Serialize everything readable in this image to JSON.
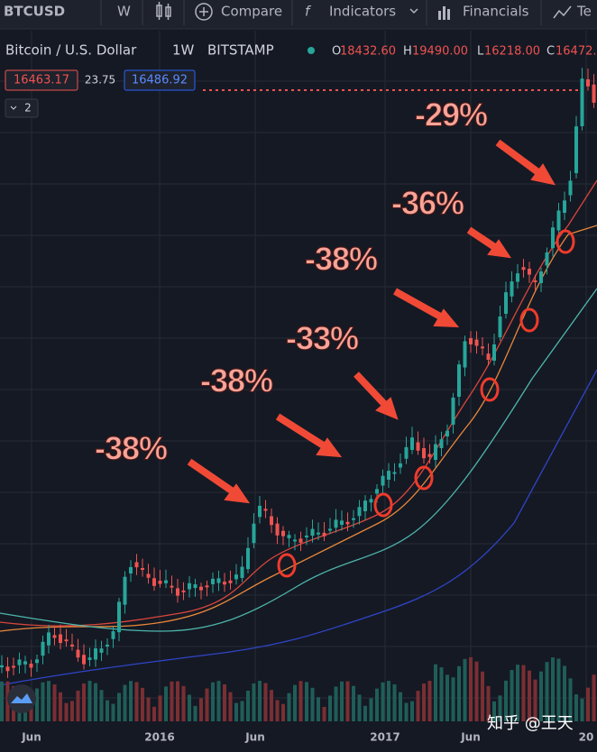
{
  "toolbar": {
    "symbol": "BTCUSD",
    "interval": "W",
    "compare": "Compare",
    "indicators": "Indicators",
    "financials": "Financials",
    "more": "Te"
  },
  "legend": {
    "title": "Bitcoin / U.S. Dollar",
    "interval": "1W",
    "exchange": "BITSTAMP",
    "open": {
      "label": "O",
      "value": "18432.60"
    },
    "high": {
      "label": "H",
      "value": "19490.00"
    },
    "low": {
      "label": "L",
      "value": "16218.00"
    },
    "close": {
      "label": "C",
      "value": "16472."
    }
  },
  "prices": {
    "sell": "16463.17",
    "spread": "23.75",
    "buy": "16486.92",
    "collapse": "2"
  },
  "annotations": [
    "-38%",
    "-38%",
    "-33%",
    "-38%",
    "-36%",
    "-29%"
  ],
  "x_axis": [
    "Jun",
    "2016",
    "Jun",
    "2017",
    "Jun",
    "20"
  ],
  "watermark": "知乎 @王天"
}
